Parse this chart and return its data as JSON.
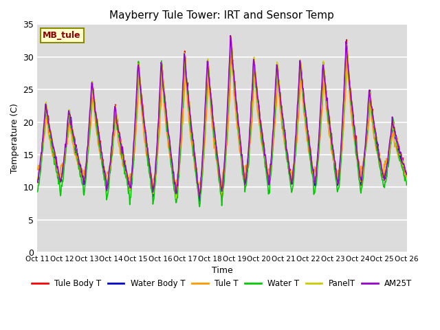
{
  "title": "Mayberry Tule Tower: IRT and Sensor Temp",
  "xlabel": "Time",
  "ylabel": "Temperature (C)",
  "ylim": [
    0,
    35
  ],
  "yticks": [
    0,
    5,
    10,
    15,
    20,
    25,
    30,
    35
  ],
  "plot_bg_color": "#dcdcdc",
  "grid_color": "#c8c8c8",
  "legend_label": "MB_tule",
  "series": {
    "Tule Body T": {
      "color": "#ff0000",
      "lw": 1.2
    },
    "Water Body T": {
      "color": "#0000cc",
      "lw": 1.2
    },
    "Tule T": {
      "color": "#ff9900",
      "lw": 1.2
    },
    "Water T": {
      "color": "#00cc00",
      "lw": 1.2
    },
    "PanelT": {
      "color": "#cccc00",
      "lw": 1.2
    },
    "AM25T": {
      "color": "#9900cc",
      "lw": 1.2
    }
  },
  "xtick_labels": [
    "Oct 11",
    "Oct 12",
    "Oct 13",
    "Oct 14",
    "Oct 15",
    "Oct 16",
    "Oct 17",
    "Oct 18",
    "Oct 19",
    "Oct 20",
    "Oct 21",
    "Oct 22",
    "Oct 23",
    "Oct 24",
    "Oct 25",
    "Oct 26"
  ],
  "n_days": 16,
  "pts_per_day": 48
}
